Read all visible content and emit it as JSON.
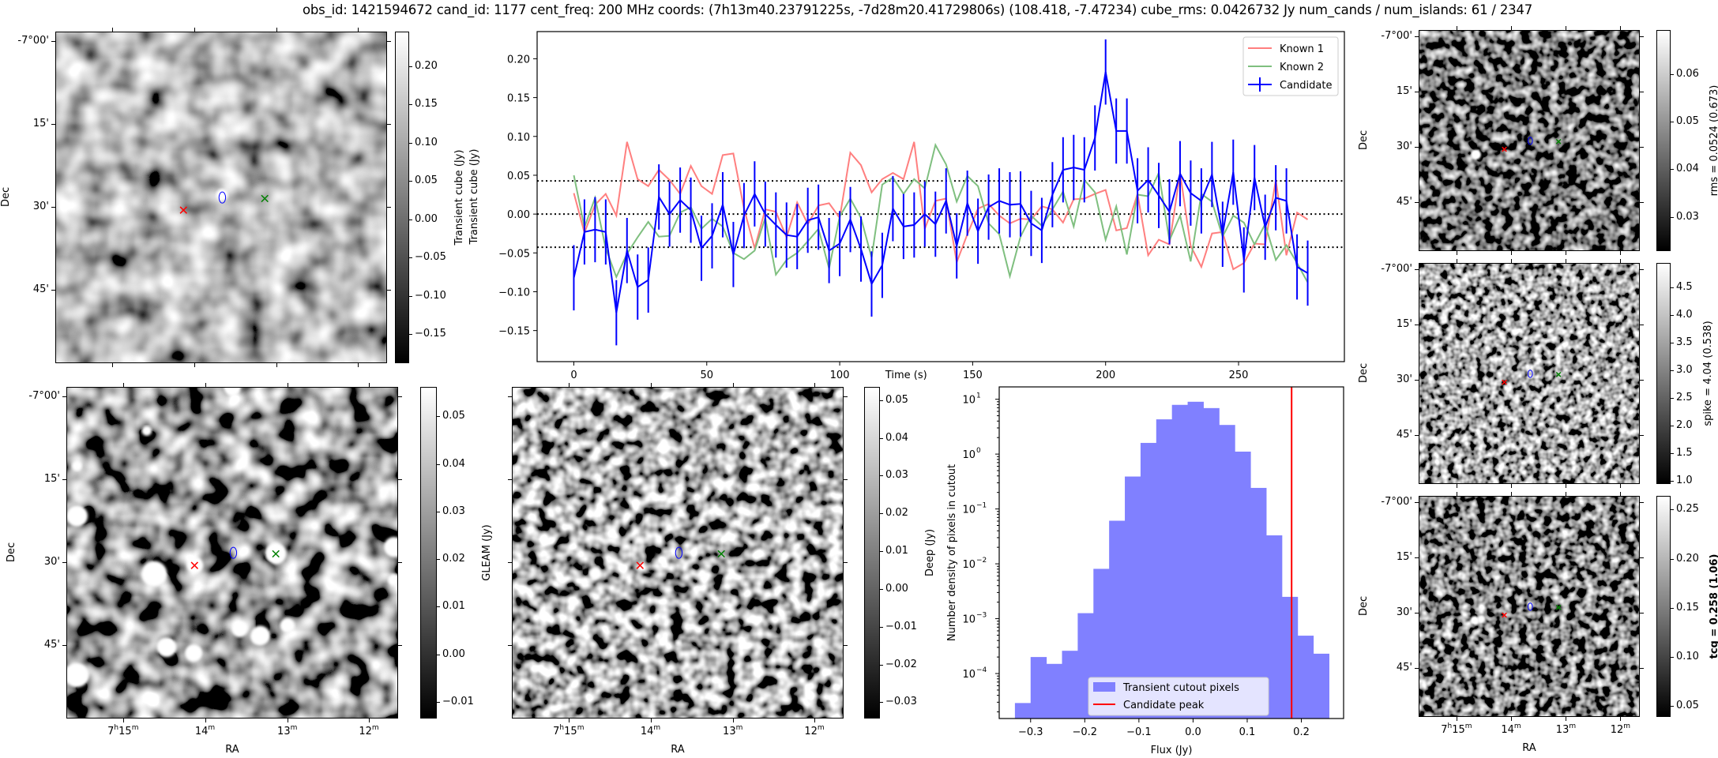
{
  "title": "obs_id: 1421594672 cand_id: 1177 cent_freq: 200 MHz coords: (7h13m40.23791225s, -7d28m20.41729806s) (108.418, -7.47234) cube_rms: 0.0426732 Jy num_cands / num_islands: 61 / 2347",
  "image_axes": {
    "dec_label": "Dec",
    "ra_label": "RA",
    "dec_ticks": [
      "-7°00'",
      "15'",
      "30'",
      "45'"
    ],
    "ra_ticks": [
      "7h15m",
      "14m",
      "13m",
      "12m"
    ]
  },
  "markers": {
    "known1": {
      "symbol": "x",
      "color": "#ff0000"
    },
    "candidate": {
      "symbol": "ellipse",
      "color": "#0000ff"
    },
    "known2": {
      "symbol": "x",
      "color": "#008000"
    }
  },
  "images": [
    {
      "key": "transient",
      "cbar_label": "Transient cube (Jy)",
      "cbar_range": [
        -0.188,
        0.245
      ],
      "cbar_ticks": [
        -0.15,
        -0.1,
        -0.05,
        0.0,
        0.05,
        0.1,
        0.15,
        0.2
      ],
      "cbar_tick_labels": [
        "−0.15",
        "−0.10",
        "−0.05",
        "0.00",
        "0.05",
        "0.10",
        "0.15",
        "0.20"
      ]
    },
    {
      "key": "gleam",
      "cbar_label": "GLEAM (Jy)",
      "cbar_range": [
        -0.0135,
        0.0562
      ],
      "cbar_ticks": [
        -0.01,
        0.0,
        0.01,
        0.02,
        0.03,
        0.04,
        0.05
      ],
      "cbar_tick_labels": [
        "−0.01",
        "0.00",
        "0.01",
        "0.02",
        "0.03",
        "0.04",
        "0.05"
      ]
    },
    {
      "key": "deep",
      "cbar_label": "Deep (Jy)",
      "cbar_range": [
        -0.0343,
        0.0535
      ],
      "cbar_ticks": [
        -0.03,
        -0.02,
        -0.01,
        0.0,
        0.01,
        0.02,
        0.03,
        0.04,
        0.05
      ],
      "cbar_tick_labels": [
        "−0.03",
        "−0.02",
        "−0.01",
        "0.00",
        "0.01",
        "0.02",
        "0.03",
        "0.04",
        "0.05"
      ]
    },
    {
      "key": "rms",
      "cbar_label": "rms = 0.0524 (0.673)",
      "cbar_range": [
        0.0228,
        0.0692
      ],
      "cbar_ticks": [
        0.03,
        0.04,
        0.05,
        0.06
      ],
      "cbar_tick_labels": [
        "0.03",
        "0.04",
        "0.05",
        "0.06"
      ]
    },
    {
      "key": "spike",
      "cbar_label": "spike = 4.04 (0.538)",
      "cbar_range": [
        0.94,
        4.94
      ],
      "cbar_ticks": [
        1.0,
        1.5,
        2.0,
        2.5,
        3.0,
        3.5,
        4.0,
        4.5
      ],
      "cbar_tick_labels": [
        "1.0",
        "1.5",
        "2.0",
        "2.5",
        "3.0",
        "3.5",
        "4.0",
        "4.5"
      ]
    },
    {
      "key": "tcg",
      "cbar_label": "tcg = 0.258 (1.06)",
      "cbar_label_bold": true,
      "cbar_range": [
        0.039,
        0.264
      ],
      "cbar_ticks": [
        0.05,
        0.1,
        0.15,
        0.2,
        0.25
      ],
      "cbar_tick_labels": [
        "0.05",
        "0.10",
        "0.15",
        "0.20",
        "0.25"
      ]
    }
  ],
  "chart_data": [
    {
      "type": "line",
      "title": "",
      "xlabel": "Time (s)",
      "ylabel": "Transient cube (Jy)",
      "xlim": [
        -13.8,
        289.8
      ],
      "ylim": [
        -0.19,
        0.235
      ],
      "xticks": [
        0,
        50,
        100,
        150,
        200,
        250
      ],
      "yticks": [
        -0.15,
        -0.1,
        -0.05,
        0.0,
        0.05,
        0.1,
        0.15,
        0.2
      ],
      "ytick_labels": [
        "−0.15",
        "−0.10",
        "−0.05",
        "0.00",
        "0.05",
        "0.10",
        "0.15",
        "0.20"
      ],
      "hlines": [
        {
          "y": 0.0426732,
          "style": "dotted"
        },
        {
          "y": 0.0,
          "style": "dotted"
        },
        {
          "y": -0.0426732,
          "style": "dotted"
        }
      ],
      "legend_position": "top-right",
      "x": [
        0,
        4,
        8,
        12,
        16,
        20,
        24,
        28,
        32,
        36,
        40,
        44,
        48,
        52,
        56,
        60,
        64,
        68,
        72,
        76,
        80,
        84,
        88,
        92,
        96,
        100,
        104,
        108,
        112,
        116,
        120,
        124,
        128,
        132,
        136,
        140,
        144,
        148,
        152,
        156,
        160,
        164,
        168,
        172,
        176,
        180,
        184,
        188,
        192,
        196,
        200,
        204,
        208,
        212,
        216,
        220,
        224,
        228,
        232,
        236,
        240,
        244,
        248,
        252,
        256,
        260,
        264,
        268,
        272,
        276
      ],
      "series": [
        {
          "name": "Known 1",
          "color": "#ff7f7f",
          "values": [
            0.027,
            -0.024,
            0.012,
            0.026,
            -0.002,
            0.093,
            0.045,
            0.036,
            0.057,
            0.044,
            0.026,
            0.062,
            0.036,
            0.026,
            0.076,
            0.078,
            0.007,
            -0.044,
            0.006,
            0.003,
            -0.03,
            0.015,
            -0.013,
            0.011,
            0.014,
            -0.005,
            0.079,
            0.063,
            0.028,
            0.045,
            0.053,
            0.045,
            0.093,
            -0.019,
            0.017,
            0.02,
            -0.062,
            -0.026,
            0.007,
            0.013,
            -0.002,
            -0.012,
            -0.006,
            -0.007,
            0.01,
            0.006,
            -0.011,
            0.019,
            0.02,
            0.026,
            0.031,
            -0.021,
            -0.018,
            0.026,
            -0.053,
            -0.033,
            -0.039,
            0.053,
            -0.041,
            -0.068,
            -0.025,
            -0.023,
            -0.071,
            -0.063,
            -0.038,
            -0.039,
            0.044,
            -0.053,
            0.002,
            -0.007
          ]
        },
        {
          "name": "Known 2",
          "color": "#7fbf7f",
          "values": [
            0.05,
            -0.017,
            0.021,
            -0.044,
            -0.081,
            -0.051,
            -0.03,
            -0.01,
            -0.029,
            -0.028,
            0.002,
            0.009,
            -0.019,
            -0.006,
            -0.016,
            -0.05,
            -0.058,
            -0.047,
            -0.005,
            -0.078,
            -0.059,
            -0.05,
            -0.035,
            -0.019,
            -0.07,
            -0.003,
            0.02,
            -0.005,
            -0.056,
            0.038,
            0.047,
            0.026,
            0.045,
            0.033,
            0.089,
            0.064,
            0.016,
            0.049,
            0.036,
            -0.012,
            -0.026,
            -0.08,
            -0.029,
            -0.002,
            -0.015,
            0.006,
            0.029,
            -0.016,
            0.044,
            0.028,
            -0.033,
            0.01,
            -0.052,
            0.025,
            0.023,
            0.053,
            -0.034,
            -0.002,
            -0.061,
            0.026,
            0.016,
            -0.029,
            -0.002,
            -0.011,
            -0.039,
            -0.013,
            -0.059,
            -0.04,
            -0.063,
            -0.088
          ]
        },
        {
          "name": "Candidate",
          "color": "#0000ff",
          "yerr": 0.042,
          "values": [
            -0.082,
            -0.023,
            -0.02,
            -0.023,
            -0.127,
            -0.047,
            -0.094,
            -0.085,
            0.022,
            0.0,
            0.018,
            0.005,
            -0.044,
            -0.028,
            0.012,
            -0.052,
            -0.002,
            0.026,
            0.0,
            -0.014,
            -0.027,
            -0.029,
            -0.008,
            -0.004,
            -0.047,
            -0.038,
            -0.007,
            -0.045,
            -0.09,
            -0.066,
            0.007,
            -0.016,
            -0.014,
            0.0,
            -0.013,
            0.017,
            -0.041,
            0.014,
            -0.022,
            0.009,
            0.017,
            0.012,
            0.013,
            -0.012,
            -0.021,
            0.025,
            0.057,
            0.06,
            0.057,
            0.098,
            0.183,
            0.107,
            0.107,
            0.03,
            0.044,
            0.024,
            0.003,
            0.052,
            0.027,
            0.017,
            0.051,
            -0.026,
            0.054,
            -0.059,
            0.047,
            -0.017,
            0.021,
            0.017,
            -0.068,
            -0.076
          ]
        }
      ]
    },
    {
      "type": "bar",
      "subtype": "histogram",
      "xlabel": "Flux (Jy)",
      "ylabel": "Number density of pixels in cutout",
      "yscale": "log",
      "xlim": [
        -0.358,
        0.278
      ],
      "ylim_log10": [
        -4.82,
        1.225
      ],
      "xticks": [
        -0.3,
        -0.2,
        -0.1,
        0.0,
        0.1,
        0.2
      ],
      "xtick_labels": [
        "−0.3",
        "−0.2",
        "−0.1",
        "0.0",
        "0.1",
        "0.2"
      ],
      "ytick_exponents": [
        "1",
        "0",
        "−1",
        "−2",
        "−3",
        "−4"
      ],
      "ytick_log10": [
        1,
        0,
        -1,
        -2,
        -3,
        -4
      ],
      "bin_edges": [
        -0.329,
        -0.3,
        -0.271,
        -0.242,
        -0.213,
        -0.184,
        -0.155,
        -0.126,
        -0.097,
        -0.068,
        -0.039,
        -0.01,
        0.019,
        0.048,
        0.077,
        0.106,
        0.135,
        0.164,
        0.193,
        0.222,
        0.251
      ],
      "values": [
        2.9e-05,
        0.0002,
        0.00015,
        0.00026,
        0.00126,
        0.0081,
        0.061,
        0.39,
        1.6,
        4.3,
        7.9,
        9.0,
        6.9,
        3.4,
        1.11,
        0.242,
        0.033,
        0.0025,
        0.00049,
        0.00023
      ],
      "bar_color": "#8080ff",
      "vline": {
        "x": 0.182,
        "color": "#ff0000"
      },
      "legend_position": "lower-center",
      "legend": [
        "Transient cutout pixels",
        "Candidate peak"
      ]
    }
  ]
}
